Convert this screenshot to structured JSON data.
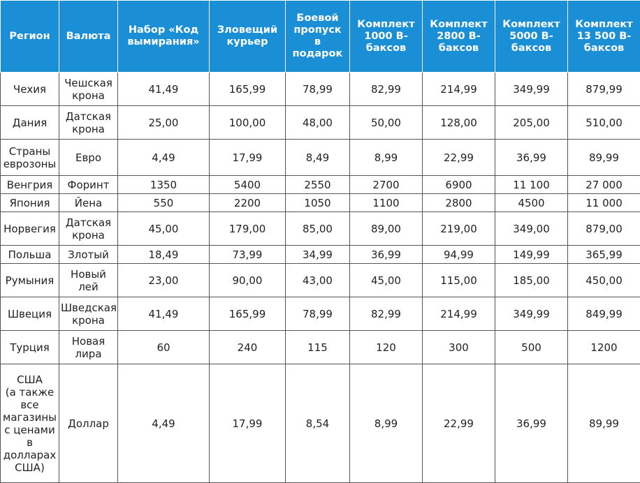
{
  "table": {
    "headers": [
      "Регион",
      "Валюта",
      "Набор «Код\nвымирания»",
      "Зловещий\nкурьер",
      "Боевой\nпропуск\nв\nподарок",
      "Комплект\n1000 В-\nбаксов",
      "Комплект\n2800 В-\nбаксов",
      "Комплект\n5000 В-\nбаксов",
      "Комплект\n13 500 В-\nбаксов"
    ],
    "rows": [
      [
        "Чехия",
        "Чешская\nкрона",
        "41,49",
        "165,99",
        "78,99",
        "82,99",
        "214,99",
        "349,99",
        "879,99"
      ],
      [
        "Дания",
        "Датская\nкрона",
        "25,00",
        "100,00",
        "48,00",
        "50,00",
        "128,00",
        "205,00",
        "510,00"
      ],
      [
        "Страны\nеврозоны",
        "Евро",
        "4,49",
        "17,99",
        "8,49",
        "8,99",
        "22,99",
        "36,99",
        "89,99"
      ],
      [
        "Венгрия",
        "Форинт",
        "1350",
        "5400",
        "2550",
        "2700",
        "6900",
        "11 100",
        "27 000"
      ],
      [
        "Япония",
        "Йена",
        "550",
        "2200",
        "1050",
        "1100",
        "2800",
        "4500",
        "11 000"
      ],
      [
        "Норвегия",
        "Датская\nкрона",
        "45,00",
        "179,00",
        "85,00",
        "89,00",
        "219,00",
        "349,00",
        "879,00"
      ],
      [
        "Польша",
        "Злотый",
        "18,49",
        "73,99",
        "34,99",
        "36,99",
        "94,99",
        "149,99",
        "365,99"
      ],
      [
        "Румыния",
        "Новый\nлей",
        "23,00",
        "90,00",
        "43,00",
        "45,00",
        "115,00",
        "185,00",
        "450,00"
      ],
      [
        "Швеция",
        "Шведская\nкрона",
        "41,49",
        "165,99",
        "78,99",
        "82,99",
        "214,99",
        "349,99",
        "849,99"
      ],
      [
        "Турция",
        "Новая\nлира",
        "60",
        "240",
        "115",
        "120",
        "300",
        "500",
        "1200"
      ],
      [
        "США\n(а также\nвсе\nмагазины\nс ценами\nв\nдолларах\nСША)",
        "Доллар",
        "4,49",
        "17,99",
        "8,54",
        "8,99",
        "22,99",
        "36,99",
        "89,99"
      ]
    ],
    "colors": {
      "header_bg": "#1a8fd6",
      "header_text": "#ffffff",
      "border": "#555555"
    }
  }
}
